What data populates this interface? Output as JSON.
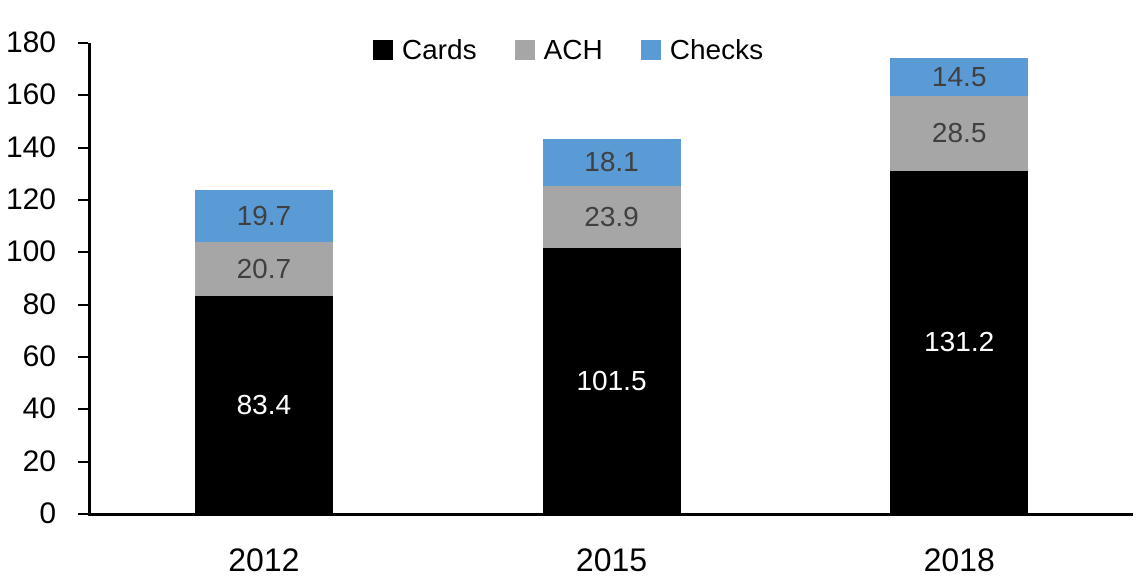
{
  "chart_data": {
    "type": "bar",
    "stacked": true,
    "title": "",
    "xlabel": "",
    "ylabel": "",
    "categories": [
      "2012",
      "2015",
      "2018"
    ],
    "series": [
      {
        "name": "Cards",
        "color": "#000000",
        "label_color": "#ffffff",
        "values": [
          83.4,
          101.5,
          131.2
        ]
      },
      {
        "name": "ACH",
        "color": "#a6a6a6",
        "label_color": "#404040",
        "values": [
          20.7,
          23.9,
          28.5
        ]
      },
      {
        "name": "Checks",
        "color": "#5b9bd5",
        "label_color": "#404040",
        "values": [
          19.7,
          18.1,
          14.5
        ]
      }
    ],
    "y_ticks": [
      0,
      20,
      40,
      60,
      80,
      100,
      120,
      140,
      160,
      180
    ],
    "ylim": [
      0,
      180
    ],
    "legend_position": "top",
    "grid": false,
    "axis_color": "#000000"
  }
}
